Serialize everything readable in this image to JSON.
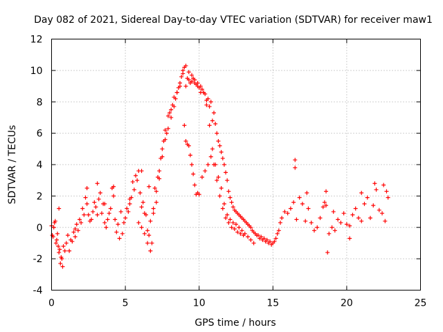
{
  "chart_data": {
    "type": "scatter",
    "title": "Day 082 of 2021, Sidereal Day-to-day VTEC variation (SDTVAR) for receiver maw1",
    "xlabel": "GPS time / hours",
    "ylabel": "SDTVAR / TECUs",
    "xlim": [
      0,
      25
    ],
    "ylim": [
      -4,
      12
    ],
    "xticks": [
      0,
      5,
      10,
      15,
      20,
      25
    ],
    "xtick_labels": [
      "0",
      "5",
      "10",
      "15",
      "20",
      "25"
    ],
    "yticks": [
      -4,
      -2,
      0,
      2,
      4,
      6,
      8,
      10,
      12
    ],
    "ytick_labels": [
      "-4",
      "-2",
      "0",
      "2",
      "4",
      "6",
      "8",
      "10",
      "12"
    ],
    "grid": true,
    "marker": "+",
    "color": "#ff0000",
    "series": [
      {
        "name": "SDTVAR",
        "x": [
          0.0,
          0.1,
          0.2,
          0.3,
          0.4,
          0.5,
          0.6,
          0.7,
          0.8,
          1.0,
          1.2,
          1.4,
          1.6,
          1.8,
          2.0,
          2.2,
          2.4,
          2.6,
          2.8,
          3.0,
          3.2,
          3.4,
          3.6,
          3.8,
          4.0,
          4.2,
          4.4,
          4.6,
          4.8,
          5.0,
          5.2,
          5.4,
          5.6,
          5.8,
          6.0,
          6.2,
          6.4,
          6.6,
          6.8,
          7.0,
          7.2,
          7.4,
          7.6,
          7.8,
          8.0,
          8.2,
          8.4,
          8.6,
          8.8,
          9.0,
          9.2,
          9.4,
          9.6,
          9.8,
          10.0,
          10.2,
          10.4,
          10.6,
          10.8,
          11.0,
          11.2,
          11.4,
          11.6,
          11.8,
          12.0,
          12.2,
          12.4,
          12.6,
          12.8,
          13.0,
          13.2,
          13.4,
          13.6,
          13.8,
          14.0,
          14.2,
          14.4,
          14.6,
          14.8,
          15.0,
          15.2,
          15.4,
          15.6,
          15.8,
          16.0,
          16.2,
          16.4,
          16.6,
          16.8,
          17.0,
          17.2,
          17.4,
          17.6,
          17.8,
          18.0,
          18.2,
          18.4,
          18.6,
          18.8,
          19.0,
          19.2,
          19.4,
          19.6,
          19.8,
          20.0,
          20.2,
          20.4,
          20.6,
          20.8,
          21.0,
          21.2,
          21.4,
          21.6,
          21.8,
          22.0,
          22.2,
          22.4,
          22.6,
          22.8,
          0.05,
          0.15,
          0.25,
          0.35,
          0.45,
          0.55,
          0.65,
          0.75,
          0.9,
          1.1,
          1.3,
          1.5,
          1.7,
          1.9,
          2.1,
          2.3,
          2.5,
          2.7,
          2.9,
          3.1,
          3.3,
          3.5,
          3.7,
          3.9,
          4.1,
          4.3,
          4.5,
          4.7,
          4.9,
          5.1,
          5.3,
          5.5,
          5.7,
          5.9,
          6.1,
          6.3,
          6.5,
          6.7,
          6.9,
          7.1,
          7.3,
          7.5,
          7.7,
          7.9,
          8.1,
          8.3,
          8.5,
          8.7,
          8.9,
          9.1,
          9.3,
          9.5,
          9.7,
          9.9,
          10.1,
          10.3,
          10.5,
          10.7,
          10.9,
          11.1,
          11.3,
          11.5,
          11.7,
          11.9,
          12.1,
          12.3,
          12.5,
          12.7,
          12.9,
          13.1,
          13.3,
          13.5,
          13.7,
          13.9,
          14.1,
          14.3,
          14.5,
          14.7,
          14.9,
          15.1,
          15.3,
          15.5,
          5.9,
          6.1,
          6.3,
          6.5,
          6.7,
          6.9,
          7.1,
          7.3,
          7.5,
          7.7,
          7.9,
          8.1,
          8.3,
          8.5,
          8.7,
          8.9,
          9.1,
          9.3,
          9.5,
          9.7,
          9.9,
          10.1,
          10.3,
          10.5,
          10.7,
          10.9,
          11.1,
          11.3,
          11.5,
          11.7,
          11.9,
          12.1,
          12.3,
          12.5,
          12.7,
          12.9,
          13.1,
          13.3,
          13.5,
          13.7,
          9.0,
          9.1,
          9.2,
          9.3,
          9.4,
          9.5,
          9.6,
          9.7,
          9.8,
          9.9,
          10.0,
          10.2,
          10.4,
          10.6,
          10.8,
          11.0,
          11.2,
          11.4,
          11.6,
          11.8,
          12.0,
          12.2,
          12.4,
          12.6,
          12.8,
          13.0,
          0.5,
          1.6,
          2.4,
          3.1,
          3.6,
          4.2,
          5.3,
          6.1,
          6.6,
          16.5,
          16.5,
          17.3,
          18.6,
          18.5,
          18.7,
          19.1,
          20.2,
          21.9,
          22.7,
          22.5,
          21.0
        ],
        "y": [
          0.1,
          -0.6,
          0.3,
          -1.0,
          -0.4,
          -1.6,
          -2.3,
          -2.0,
          -1.2,
          -1.0,
          -1.5,
          -0.9,
          -0.6,
          -0.2,
          0.3,
          0.8,
          1.5,
          0.4,
          1.0,
          1.3,
          1.8,
          0.9,
          0.3,
          0.5,
          1.2,
          2.0,
          -0.3,
          -0.7,
          -0.4,
          0.6,
          1.0,
          1.9,
          2.4,
          3.0,
          2.2,
          1.6,
          0.8,
          -0.5,
          -1.0,
          2.5,
          3.2,
          4.4,
          5.5,
          6.0,
          7.3,
          7.8,
          8.2,
          8.9,
          9.6,
          10.2,
          9.5,
          9.2,
          9.5,
          9.1,
          8.9,
          8.8,
          8.5,
          8.2,
          8.0,
          7.3,
          6.0,
          5.2,
          4.4,
          3.5,
          2.3,
          1.6,
          1.1,
          0.9,
          0.7,
          0.5,
          0.3,
          0.1,
          -0.2,
          -0.4,
          -0.5,
          -0.6,
          -0.7,
          -0.8,
          -0.9,
          -1.0,
          -0.7,
          -0.2,
          0.6,
          1.0,
          0.9,
          1.2,
          1.6,
          0.5,
          1.9,
          1.5,
          0.4,
          1.2,
          0.3,
          -0.2,
          0.0,
          0.6,
          1.3,
          1.4,
          -0.4,
          0.0,
          -0.2,
          0.5,
          0.3,
          0.9,
          0.2,
          0.1,
          0.8,
          1.2,
          0.6,
          0.4,
          1.5,
          1.9,
          0.6,
          1.4,
          2.4,
          1.1,
          0.9,
          0.4,
          1.9,
          -0.5,
          0.0,
          0.4,
          -0.8,
          -1.2,
          -1.4,
          -1.9,
          -2.5,
          -1.5,
          -0.5,
          -0.8,
          -0.3,
          0.2,
          0.5,
          1.2,
          1.9,
          0.8,
          0.5,
          1.6,
          0.8,
          2.2,
          1.5,
          0.0,
          0.9,
          2.5,
          0.5,
          0.2,
          1.0,
          0.3,
          1.2,
          1.8,
          2.9,
          3.3,
          3.6,
          1.3,
          0.9,
          -0.2,
          -1.5,
          0.9,
          1.6,
          3.6,
          5.0,
          6.2,
          7.1,
          7.5,
          8.3,
          8.6,
          9.0,
          10.0,
          9.0,
          9.4,
          9.3,
          9.2,
          9.0,
          8.6,
          8.6,
          8.1,
          7.7,
          6.8,
          6.6,
          5.5,
          4.8,
          4.0,
          3.0,
          1.9,
          1.3,
          1.0,
          0.8,
          0.6,
          0.4,
          0.2,
          0.0,
          -0.3,
          -0.5,
          -0.7,
          -0.8,
          -0.9,
          -1.0,
          -1.1,
          -0.9,
          -0.4,
          0.3,
          0.3,
          0.0,
          -0.4,
          -1.0,
          0.4,
          1.2,
          2.3,
          3.1,
          4.5,
          5.6,
          6.3,
          7.0,
          7.7,
          8.6,
          9.2,
          9.8,
          10.3,
          9.9,
          9.7,
          9.4,
          9.2,
          9.0,
          8.6,
          7.8,
          6.5,
          5.0,
          4.0,
          3.2,
          2.5,
          1.5,
          0.8,
          0.5,
          0.3,
          0.2,
          0.0,
          -0.2,
          -0.4,
          -0.6,
          -0.8,
          -1.0,
          6.5,
          5.5,
          5.3,
          5.2,
          4.6,
          4.0,
          3.4,
          2.7,
          2.1,
          2.2,
          2.1,
          3.2,
          3.6,
          4.0,
          4.5,
          4.0,
          3.0,
          2.0,
          1.2,
          0.6,
          0.3,
          0.0,
          -0.1,
          -0.3,
          -0.4,
          -0.5,
          1.2,
          -0.1,
          2.5,
          2.8,
          1.5,
          2.6,
          1.5,
          3.6,
          2.6,
          4.3,
          3.8,
          2.2,
          2.3,
          1.6,
          -1.6,
          1.0,
          -0.7,
          2.8,
          2.3,
          2.7,
          2.2
        ]
      }
    ]
  }
}
